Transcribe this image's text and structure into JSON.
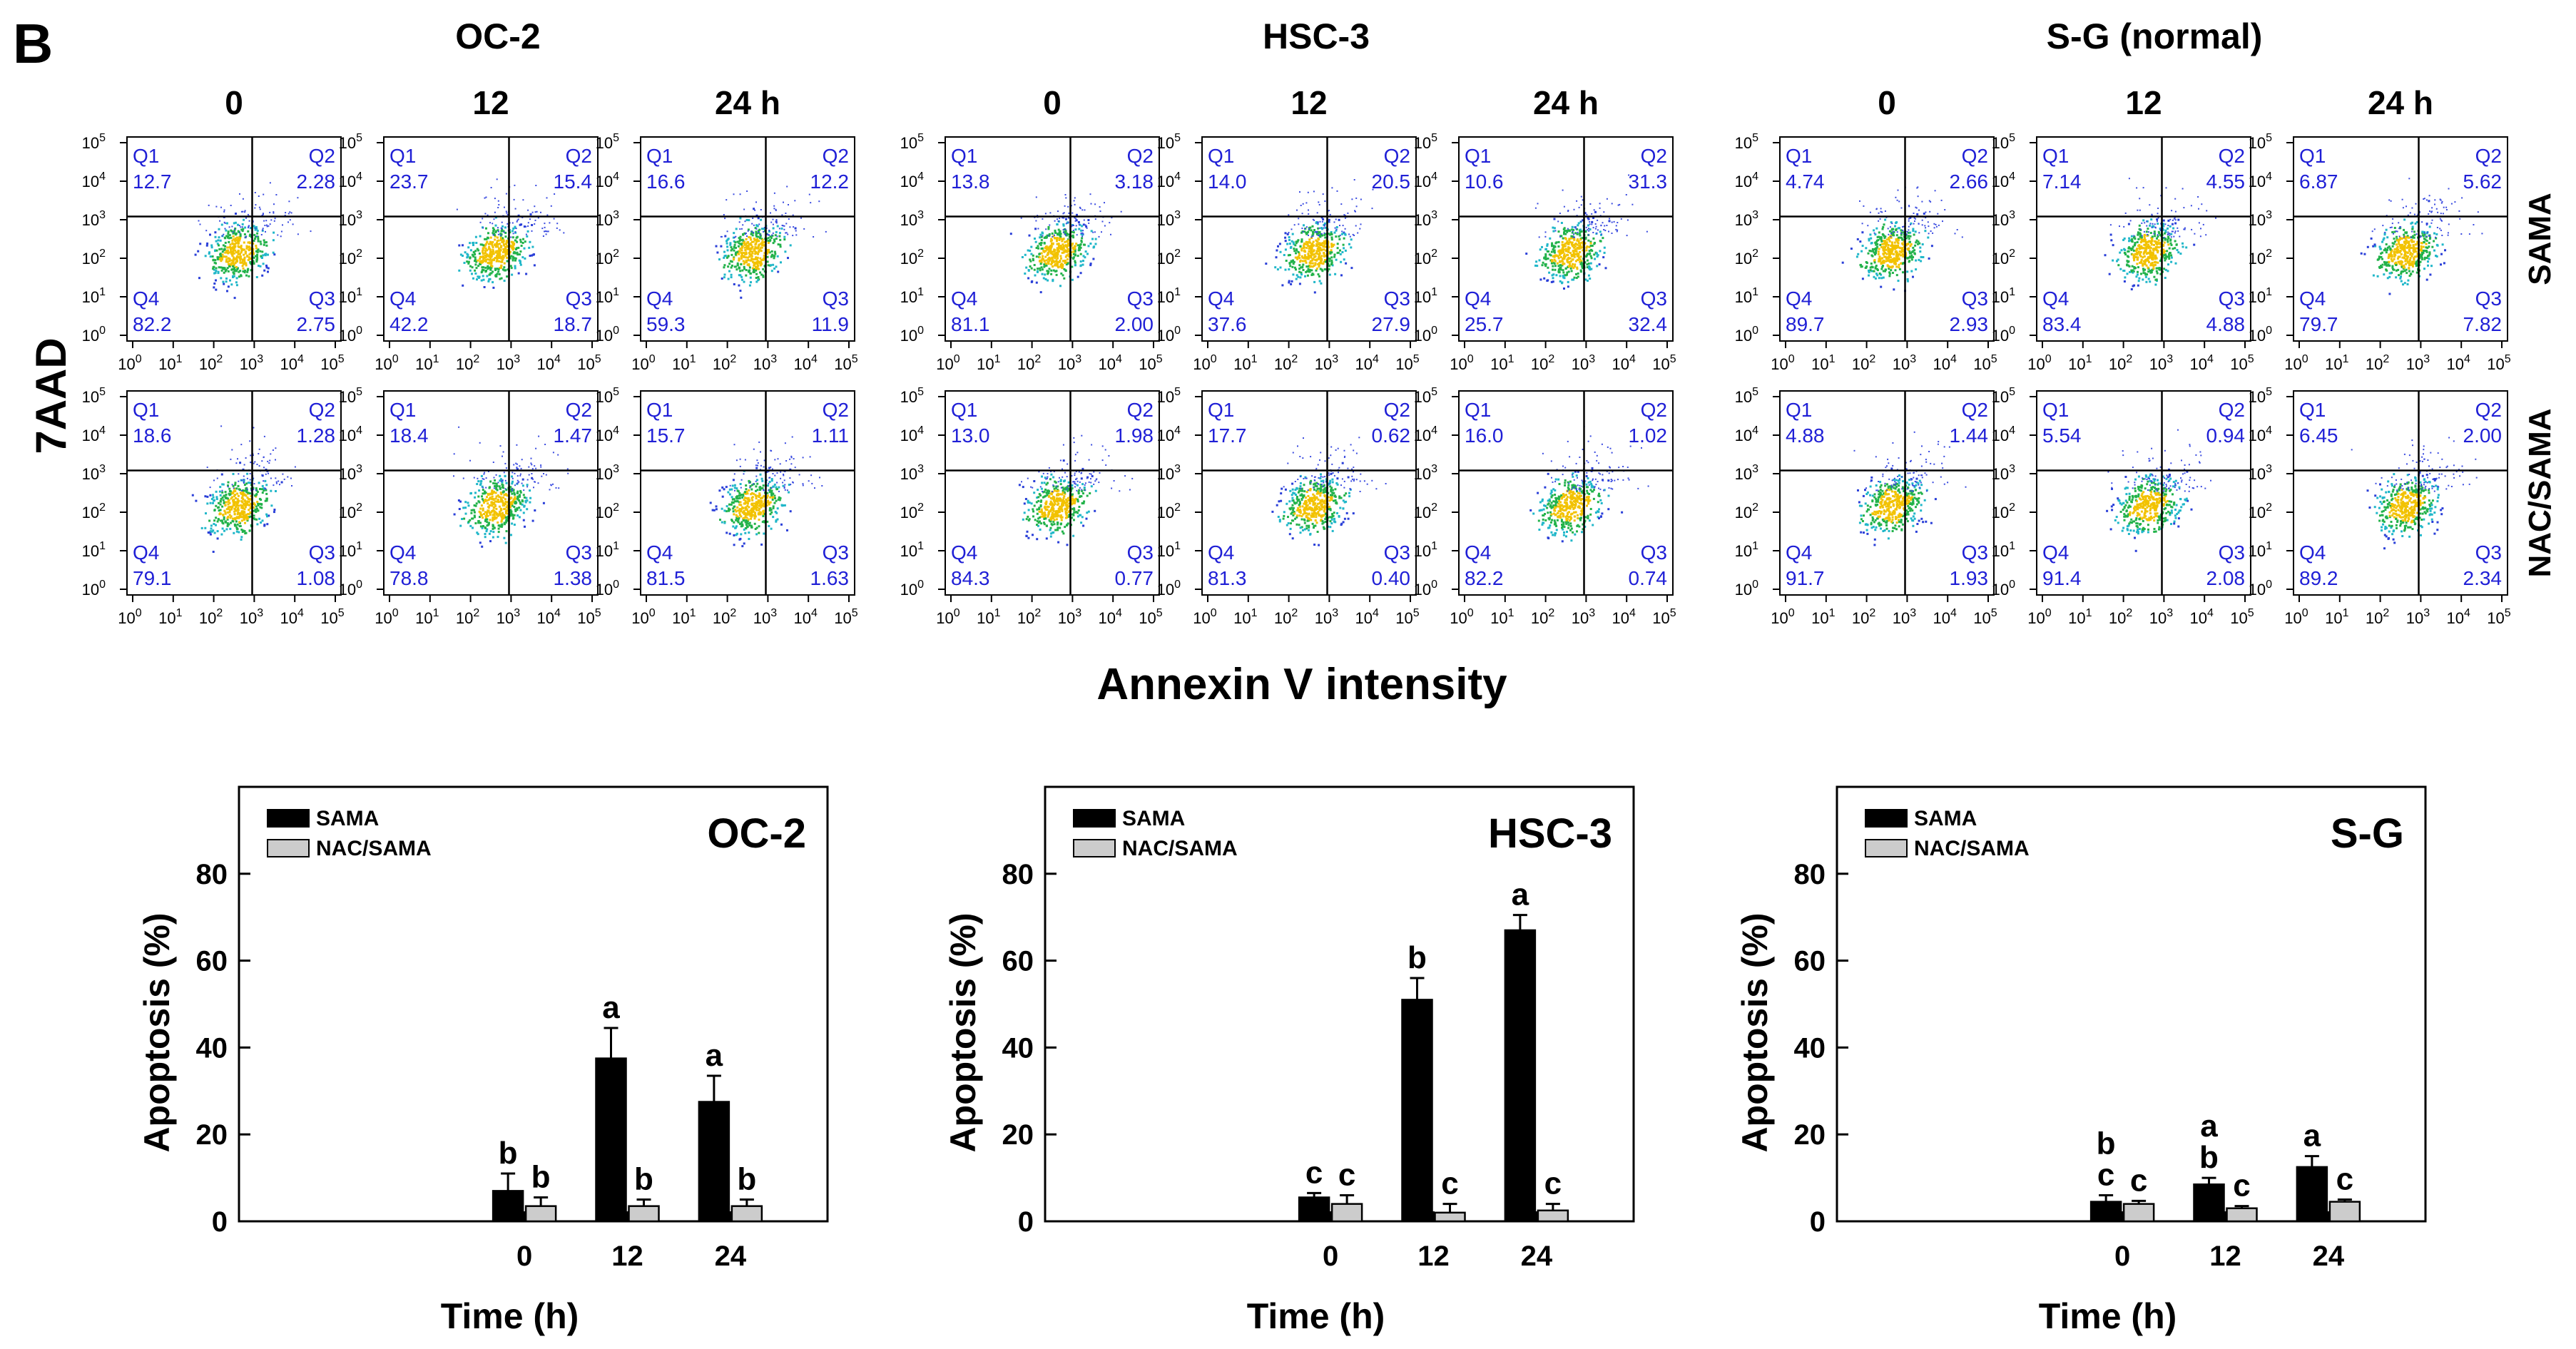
{
  "panel_label": "B",
  "flow": {
    "groups": [
      {
        "name": "OC-2",
        "times": [
          "0",
          "12",
          "24 h"
        ],
        "rows": [
          {
            "treatment": "SAMA",
            "plots": [
              {
                "Q1": "12.7",
                "Q2": "2.28",
                "Q3": "2.75",
                "Q4": "82.2"
              },
              {
                "Q1": "23.7",
                "Q2": "15.4",
                "Q3": "18.7",
                "Q4": "42.2"
              },
              {
                "Q1": "16.6",
                "Q2": "12.2",
                "Q3": "11.9",
                "Q4": "59.3"
              }
            ]
          },
          {
            "treatment": "NAC/SAMA",
            "plots": [
              {
                "Q1": "18.6",
                "Q2": "1.28",
                "Q3": "1.08",
                "Q4": "79.1"
              },
              {
                "Q1": "18.4",
                "Q2": "1.47",
                "Q3": "1.38",
                "Q4": "78.8"
              },
              {
                "Q1": "15.7",
                "Q2": "1.11",
                "Q3": "1.63",
                "Q4": "81.5"
              }
            ]
          }
        ]
      },
      {
        "name": "HSC-3",
        "times": [
          "0",
          "12",
          "24 h"
        ],
        "rows": [
          {
            "treatment": "SAMA",
            "plots": [
              {
                "Q1": "13.8",
                "Q2": "3.18",
                "Q3": "2.00",
                "Q4": "81.1"
              },
              {
                "Q1": "14.0",
                "Q2": "20.5",
                "Q3": "27.9",
                "Q4": "37.6"
              },
              {
                "Q1": "10.6",
                "Q2": "31.3",
                "Q3": "32.4",
                "Q4": "25.7"
              }
            ]
          },
          {
            "treatment": "NAC/SAMA",
            "plots": [
              {
                "Q1": "13.0",
                "Q2": "1.98",
                "Q3": "0.77",
                "Q4": "84.3"
              },
              {
                "Q1": "17.7",
                "Q2": "0.62",
                "Q3": "0.40",
                "Q4": "81.3"
              },
              {
                "Q1": "16.0",
                "Q2": "1.02",
                "Q3": "0.74",
                "Q4": "82.2"
              }
            ]
          }
        ]
      },
      {
        "name": "S-G (normal)",
        "times": [
          "0",
          "12",
          "24 h"
        ],
        "rows": [
          {
            "treatment": "SAMA",
            "plots": [
              {
                "Q1": "4.74",
                "Q2": "2.66",
                "Q3": "2.93",
                "Q4": "89.7"
              },
              {
                "Q1": "7.14",
                "Q2": "4.55",
                "Q3": "4.88",
                "Q4": "83.4"
              },
              {
                "Q1": "6.87",
                "Q2": "5.62",
                "Q3": "7.82",
                "Q4": "79.7"
              }
            ]
          },
          {
            "treatment": "NAC/SAMA",
            "plots": [
              {
                "Q1": "4.88",
                "Q2": "1.44",
                "Q3": "1.93",
                "Q4": "91.7"
              },
              {
                "Q1": "5.54",
                "Q2": "0.94",
                "Q3": "2.08",
                "Q4": "91.4"
              },
              {
                "Q1": "6.45",
                "Q2": "2.00",
                "Q3": "2.34",
                "Q4": "89.2"
              }
            ]
          }
        ]
      }
    ],
    "row_labels": [
      "SAMA",
      "NAC/SAMA"
    ],
    "ylabel": "7AAD",
    "xlabel": "Annexin V intensity",
    "ticks": [
      "0",
      "1",
      "2",
      "3",
      "4",
      "5"
    ],
    "tick_base": "10",
    "quadrant_labels": [
      "Q1",
      "Q2",
      "Q3",
      "Q4"
    ]
  },
  "chart_data": [
    {
      "type": "bar",
      "title": "OC-2",
      "categories": [
        "0",
        "12",
        "24"
      ],
      "series": [
        {
          "name": "SAMA",
          "values": [
            7,
            37.5,
            27.5
          ],
          "errors": [
            4,
            7,
            6
          ],
          "letters": [
            "b",
            "a",
            "a"
          ]
        },
        {
          "name": "NAC/SAMA",
          "values": [
            3.5,
            3.5,
            3.5
          ],
          "errors": [
            2,
            1.5,
            1.5
          ],
          "letters": [
            "b",
            "b",
            "b"
          ]
        }
      ],
      "xlabel": "Time (h)",
      "ylabel": "Apoptosis (%)",
      "ylim": [
        0,
        100
      ],
      "yticks": [
        "0",
        "20",
        "40",
        "60",
        "80"
      ]
    },
    {
      "type": "bar",
      "title": "HSC-3",
      "categories": [
        "0",
        "12",
        "24"
      ],
      "series": [
        {
          "name": "SAMA",
          "values": [
            5.5,
            51,
            67
          ],
          "errors": [
            1,
            5,
            3.5
          ],
          "letters": [
            "c",
            "b",
            "a"
          ]
        },
        {
          "name": "NAC/SAMA",
          "values": [
            4,
            2,
            2.5
          ],
          "errors": [
            2,
            2,
            1.5
          ],
          "letters": [
            "c",
            "c",
            "c"
          ]
        }
      ],
      "xlabel": "Time (h)",
      "ylabel": "Apoptosis (%)",
      "ylim": [
        0,
        100
      ],
      "yticks": [
        "0",
        "20",
        "40",
        "60",
        "80"
      ]
    },
    {
      "type": "bar",
      "title": "S-G",
      "categories": [
        "0",
        "12",
        "24"
      ],
      "series": [
        {
          "name": "SAMA",
          "values": [
            4.5,
            8.5,
            12.5
          ],
          "errors": [
            1.5,
            1.5,
            2.5
          ],
          "letters": [
            "b\nc",
            "a\nb",
            "a"
          ]
        },
        {
          "name": "NAC/SAMA",
          "values": [
            4,
            3,
            4.5
          ],
          "errors": [
            0.7,
            0.5,
            0.5
          ],
          "letters": [
            "c",
            "c",
            "c"
          ]
        }
      ],
      "xlabel": "Time (h)",
      "ylabel": "Apoptosis (%)",
      "ylim": [
        0,
        100
      ],
      "yticks": [
        "0",
        "20",
        "40",
        "60",
        "80"
      ]
    }
  ]
}
